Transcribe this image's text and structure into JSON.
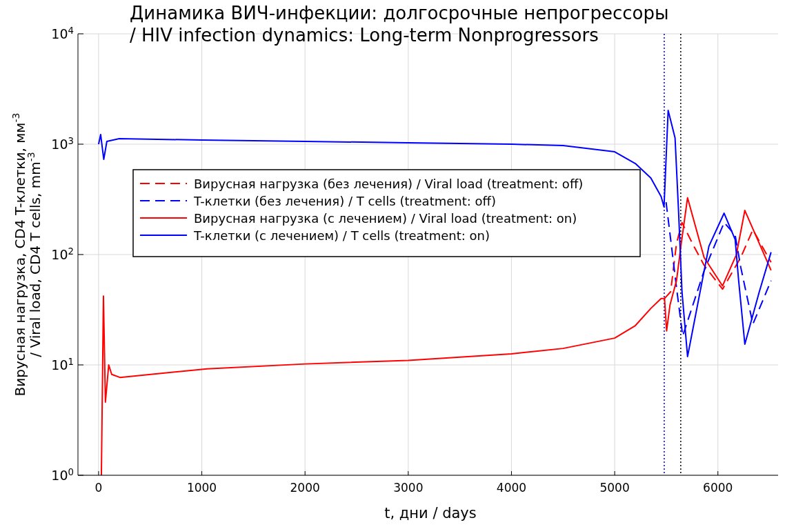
{
  "chart_data": {
    "type": "line",
    "title": "Динамика ВИЧ-инфекции: долгосрочные непрогрессоры\n/ HIV infection dynamics: Long-term Nonprogressors",
    "xlabel": "t, дни / days",
    "ylabel": "Вирусная нагрузка, CD4 T-клетки, мм$^{-3}$\n/ Viral load, CD4 T cells, mm$^{-3}$",
    "log": "y",
    "grid": true,
    "legend": "left",
    "xlim": [
      -200,
      6630
    ],
    "xticks": [
      0,
      1000,
      2000,
      3000,
      4000,
      5000,
      6000
    ],
    "ylim": [
      1,
      10000
    ],
    "yticks": [
      {
        "value": 1,
        "label": "10$^{0}$"
      },
      {
        "value": 10,
        "label": "10$^{1}$"
      },
      {
        "value": 100,
        "label": "10$^{2}$"
      },
      {
        "value": 1000,
        "label": "10$^{3}$"
      },
      {
        "value": 10000,
        "label": "10$^{4}$"
      }
    ],
    "series": [
      {
        "name": "Вирусная нагрузка (без лечения) / Viral load (treatment: off)",
        "color": "#ff0000",
        "line_style": "dashed",
        "x": [
          5483,
          5542,
          5599,
          5652,
          5753,
          5866,
          6045,
          6221,
          6339,
          6515
        ],
        "values": [
          40,
          46,
          126,
          195,
          126,
          80,
          48.6,
          94,
          168,
          85
        ]
      },
      {
        "name": "T-клетки (без лечения) / T cells (treatment: off)",
        "color": "#0000ff",
        "line_style": "dashed",
        "x": [
          5498,
          5542,
          5599,
          5659,
          5866,
          6060,
          6167,
          6221,
          6339,
          6515
        ],
        "values": [
          298,
          138,
          50,
          18.3,
          71,
          195,
          150,
          77,
          23.4,
          58
        ]
      },
      {
        "name": "Вирусная нагрузка (с лечением) / Viral load (treatment: on)",
        "color": "#ff0000",
        "line_style": "solid",
        "x": [
          27,
          47,
          66,
          98,
          127,
          207,
          1050,
          2000,
          3000,
          4000,
          4500,
          5000,
          5200,
          5350,
          5450,
          5483,
          5503,
          5536,
          5599,
          5645,
          5706,
          5866,
          6045,
          6178,
          6261,
          6515
        ],
        "values": [
          1,
          42,
          4.6,
          10,
          8.2,
          7.7,
          9.2,
          10.2,
          11,
          12.6,
          14.1,
          17.5,
          22.7,
          32.5,
          40,
          40,
          20.3,
          35,
          58,
          126,
          327,
          94,
          52,
          99,
          251,
          72
        ]
      },
      {
        "name": "T-клетки (с лечением) / T cells (treatment: on)",
        "color": "#0000ff",
        "line_style": "solid",
        "x": [
          0,
          20,
          50,
          80,
          200,
          1000,
          2000,
          3000,
          4000,
          4500,
          5000,
          5200,
          5350,
          5450,
          5478,
          5518,
          5585,
          5619,
          5652,
          5706,
          5913,
          6060,
          6167,
          6201,
          6261,
          6401,
          6515
        ],
        "values": [
          1000,
          1223,
          729,
          1059,
          1122,
          1090,
          1059,
          1030,
          1000,
          970,
          853,
          668,
          494,
          335,
          270,
          2024,
          1137,
          244,
          46,
          11.9,
          119,
          237,
          137,
          58,
          15.4,
          46,
          105
        ]
      }
    ],
    "ref_lines": [
      {
        "axis": "x",
        "value": 5480,
        "color": "#0000aa",
        "line_style": "dotted"
      },
      {
        "axis": "x",
        "value": 5640,
        "color": "#000000",
        "line_style": "dotted"
      }
    ]
  }
}
